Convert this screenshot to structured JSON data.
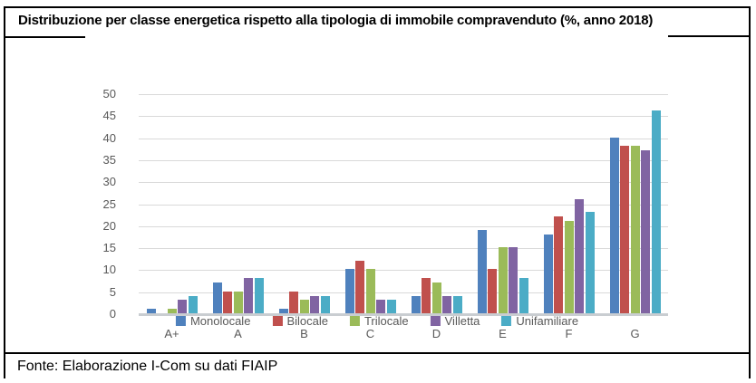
{
  "header": {
    "title": "Distribuzione per classe energetica rispetto alla tipologia di immobile compravenduto (%, anno 2018)"
  },
  "footer": {
    "text": "Fonte: Elaborazione I-Com su dati FIAIP"
  },
  "chart_data": {
    "type": "bar",
    "title": "Distribuzione per classe energetica rispetto alla tipologia di immobile compravenduto (%, anno 2018)",
    "categories": [
      "A+",
      "A",
      "B",
      "C",
      "D",
      "E",
      "F",
      "G"
    ],
    "series": [
      {
        "name": "Monolocale",
        "color": "#4F81BD",
        "values": [
          1,
          7,
          1,
          10,
          4,
          19,
          18,
          40
        ]
      },
      {
        "name": "Bilocale",
        "color": "#C0504D",
        "values": [
          0,
          5,
          5,
          12,
          8,
          10,
          22,
          38
        ]
      },
      {
        "name": "Trilocale",
        "color": "#9BBB59",
        "values": [
          1,
          5,
          3,
          10,
          7,
          15,
          21,
          38
        ]
      },
      {
        "name": "Villetta",
        "color": "#8064A2",
        "values": [
          3,
          8,
          4,
          3,
          4,
          15,
          26,
          37
        ]
      },
      {
        "name": "Unifamiliare",
        "color": "#4BACC6",
        "values": [
          4,
          8,
          4,
          3,
          4,
          8,
          23,
          46
        ]
      }
    ],
    "xlabel": "",
    "ylabel": "",
    "ylim": [
      0,
      50
    ],
    "yticks": [
      0,
      5,
      10,
      15,
      20,
      25,
      30,
      35,
      40,
      45,
      50
    ],
    "grid": true,
    "legend_position": "bottom",
    "gridline_color": "#d9d9d9",
    "axis_line_color": "#c9cdd1",
    "tick_label_color": "#595959"
  }
}
